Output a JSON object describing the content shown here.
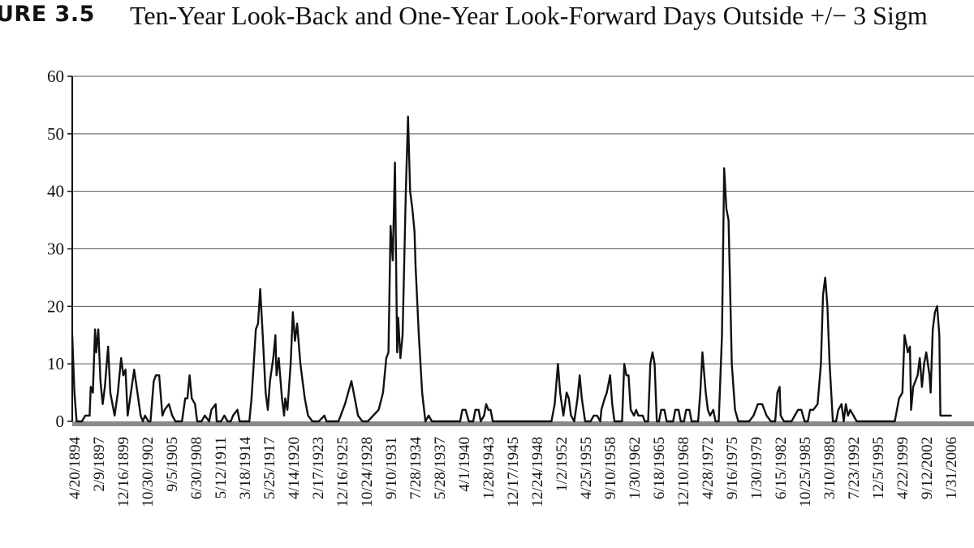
{
  "figure": {
    "label": "URE 3.5",
    "title": "Ten-Year Look-Back and One-Year Look-Forward Days Outside +/− 3 Sigm"
  },
  "chart_data": {
    "type": "line",
    "title": "Ten-Year Look-Back and One-Year Look-Forward Days Outside +/− 3 Sigm",
    "xlabel": "",
    "ylabel": "",
    "ylim": [
      0,
      60
    ],
    "yticks": [
      0,
      10,
      20,
      30,
      40,
      50,
      60
    ],
    "grid": "horizontal",
    "x_tick_labels": [
      "4/20/1894",
      "2/9/1897",
      "12/16/1899",
      "10/30/1902",
      "9/5/1905",
      "6/30/1908",
      "5/12/1911",
      "3/18/1914",
      "5/25/1917",
      "4/14/1920",
      "2/17/1923",
      "12/16/1925",
      "10/24/1928",
      "9/10/1931",
      "7/28/1934",
      "5/28/1937",
      "4/1/1940",
      "1/28/1943",
      "12/17/1945",
      "12/24/1948",
      "1/2/1952",
      "4/25/1955",
      "9/10/1958",
      "1/30/1962",
      "6/18/1965",
      "12/10/1968",
      "4/28/1972",
      "9/16/1975",
      "1/30/1979",
      "6/15/1982",
      "10/25/1985",
      "3/10/1989",
      "7/23/1992",
      "12/5/1995",
      "4/22/1999",
      "9/12/2002",
      "1/31/2006"
    ],
    "series": [
      {
        "values": [
          [
            1894.3,
            15
          ],
          [
            1894.5,
            5
          ],
          [
            1894.7,
            0
          ],
          [
            1895.2,
            0
          ],
          [
            1895.5,
            1
          ],
          [
            1895.9,
            1
          ],
          [
            1896.0,
            6
          ],
          [
            1896.2,
            5
          ],
          [
            1896.4,
            16
          ],
          [
            1896.5,
            12
          ],
          [
            1896.7,
            16
          ],
          [
            1896.9,
            7
          ],
          [
            1897.1,
            3
          ],
          [
            1897.3,
            6
          ],
          [
            1897.6,
            13
          ],
          [
            1897.8,
            5
          ],
          [
            1898.2,
            1
          ],
          [
            1898.5,
            5
          ],
          [
            1898.8,
            11
          ],
          [
            1899.0,
            8
          ],
          [
            1899.2,
            9
          ],
          [
            1899.4,
            1
          ],
          [
            1899.7,
            5
          ],
          [
            1900.0,
            9
          ],
          [
            1900.3,
            5
          ],
          [
            1900.6,
            1
          ],
          [
            1900.8,
            0
          ],
          [
            1901.0,
            1
          ],
          [
            1901.3,
            0
          ],
          [
            1901.5,
            0
          ],
          [
            1901.8,
            7
          ],
          [
            1902.0,
            8
          ],
          [
            1902.3,
            8
          ],
          [
            1902.6,
            1
          ],
          [
            1902.8,
            2
          ],
          [
            1903.2,
            3
          ],
          [
            1903.5,
            1
          ],
          [
            1903.8,
            0
          ],
          [
            1904.4,
            0
          ],
          [
            1904.7,
            4
          ],
          [
            1904.9,
            4
          ],
          [
            1905.1,
            8
          ],
          [
            1905.3,
            4
          ],
          [
            1905.6,
            3
          ],
          [
            1905.8,
            0
          ],
          [
            1906.2,
            0
          ],
          [
            1906.5,
            1
          ],
          [
            1906.9,
            0
          ],
          [
            1907.1,
            2
          ],
          [
            1907.5,
            3
          ],
          [
            1907.6,
            0
          ],
          [
            1908.0,
            0
          ],
          [
            1908.3,
            1
          ],
          [
            1908.6,
            0
          ],
          [
            1908.9,
            0
          ],
          [
            1909.1,
            1
          ],
          [
            1909.5,
            2
          ],
          [
            1909.7,
            0
          ],
          [
            1910.6,
            0
          ],
          [
            1910.8,
            4
          ],
          [
            1911.0,
            10
          ],
          [
            1911.2,
            16
          ],
          [
            1911.4,
            17
          ],
          [
            1911.6,
            23
          ],
          [
            1911.8,
            16
          ],
          [
            1912.1,
            5
          ],
          [
            1912.3,
            2
          ],
          [
            1912.5,
            7
          ],
          [
            1912.8,
            11
          ],
          [
            1913.0,
            15
          ],
          [
            1913.1,
            8
          ],
          [
            1913.3,
            11
          ],
          [
            1913.6,
            4
          ],
          [
            1913.8,
            1
          ],
          [
            1913.9,
            4
          ],
          [
            1914.1,
            2
          ],
          [
            1914.4,
            10
          ],
          [
            1914.6,
            19
          ],
          [
            1914.8,
            14
          ],
          [
            1915.0,
            17
          ],
          [
            1915.3,
            10
          ],
          [
            1915.7,
            4
          ],
          [
            1916.0,
            1
          ],
          [
            1916.4,
            0
          ],
          [
            1917.0,
            0
          ],
          [
            1917.5,
            1
          ],
          [
            1917.7,
            0
          ],
          [
            1918.8,
            0
          ],
          [
            1919.0,
            1
          ],
          [
            1919.4,
            3
          ],
          [
            1919.7,
            5
          ],
          [
            1920.0,
            7
          ],
          [
            1920.3,
            4
          ],
          [
            1920.6,
            1
          ],
          [
            1921.0,
            0
          ],
          [
            1921.5,
            0
          ],
          [
            1922.0,
            1
          ],
          [
            1922.5,
            2
          ],
          [
            1922.9,
            5
          ],
          [
            1923.2,
            11
          ],
          [
            1923.4,
            12
          ],
          [
            1923.6,
            34
          ],
          [
            1923.8,
            28
          ],
          [
            1924.0,
            45
          ],
          [
            1924.2,
            12
          ],
          [
            1924.3,
            18
          ],
          [
            1924.5,
            11
          ],
          [
            1924.7,
            15
          ],
          [
            1925.0,
            40
          ],
          [
            1925.2,
            53
          ],
          [
            1925.4,
            40
          ],
          [
            1925.6,
            37
          ],
          [
            1925.8,
            33
          ],
          [
            1925.9,
            27
          ],
          [
            1926.2,
            15
          ],
          [
            1926.5,
            5
          ],
          [
            1926.8,
            0
          ],
          [
            1927.1,
            1
          ],
          [
            1927.4,
            0
          ],
          [
            1930.0,
            0
          ],
          [
            1930.2,
            2
          ],
          [
            1930.5,
            2
          ],
          [
            1930.8,
            0
          ],
          [
            1931.2,
            0
          ],
          [
            1931.4,
            2
          ],
          [
            1931.7,
            2
          ],
          [
            1931.9,
            0
          ],
          [
            1932.2,
            1
          ],
          [
            1932.4,
            3
          ],
          [
            1932.6,
            2
          ],
          [
            1932.8,
            2
          ],
          [
            1933.0,
            0
          ],
          [
            1938.4,
            0
          ],
          [
            1938.7,
            3
          ],
          [
            1939.0,
            10
          ],
          [
            1939.2,
            5
          ],
          [
            1939.5,
            1
          ],
          [
            1939.8,
            5
          ],
          [
            1940.0,
            4
          ],
          [
            1940.2,
            1
          ],
          [
            1940.5,
            0
          ],
          [
            1940.8,
            4
          ],
          [
            1941.0,
            8
          ],
          [
            1941.2,
            4
          ],
          [
            1941.5,
            0
          ],
          [
            1942.0,
            0
          ],
          [
            1942.3,
            1
          ],
          [
            1942.6,
            1
          ],
          [
            1942.9,
            0
          ],
          [
            1943.0,
            2
          ],
          [
            1943.3,
            4
          ],
          [
            1943.5,
            5
          ],
          [
            1943.8,
            8
          ],
          [
            1944.0,
            3
          ],
          [
            1944.2,
            0
          ],
          [
            1944.9,
            0
          ],
          [
            1945.1,
            10
          ],
          [
            1945.3,
            8
          ],
          [
            1945.5,
            8
          ],
          [
            1945.7,
            2
          ],
          [
            1946.0,
            1
          ],
          [
            1946.2,
            2
          ],
          [
            1946.4,
            1
          ],
          [
            1946.6,
            1
          ],
          [
            1946.8,
            1
          ],
          [
            1947.0,
            0
          ],
          [
            1947.3,
            0
          ],
          [
            1947.5,
            10
          ],
          [
            1947.7,
            12
          ],
          [
            1947.9,
            10
          ],
          [
            1948.1,
            0
          ],
          [
            1948.3,
            0
          ],
          [
            1948.5,
            2
          ],
          [
            1948.8,
            2
          ],
          [
            1949.0,
            0
          ],
          [
            1949.6,
            0
          ],
          [
            1949.8,
            2
          ],
          [
            1950.1,
            2
          ],
          [
            1950.3,
            0
          ],
          [
            1950.6,
            0
          ],
          [
            1950.8,
            2
          ],
          [
            1951.1,
            2
          ],
          [
            1951.3,
            0
          ],
          [
            1951.9,
            0
          ],
          [
            1952.1,
            5
          ],
          [
            1952.3,
            12
          ],
          [
            1952.6,
            5
          ],
          [
            1952.8,
            2
          ],
          [
            1953.0,
            1
          ],
          [
            1953.3,
            2
          ],
          [
            1953.5,
            0
          ],
          [
            1953.8,
            0
          ],
          [
            1954.1,
            15
          ],
          [
            1954.3,
            44
          ],
          [
            1954.5,
            37
          ],
          [
            1954.7,
            35
          ],
          [
            1954.8,
            27
          ],
          [
            1955.0,
            10
          ],
          [
            1955.3,
            2
          ],
          [
            1955.6,
            0
          ],
          [
            1956.6,
            0
          ],
          [
            1957.0,
            1
          ],
          [
            1957.4,
            3
          ],
          [
            1957.8,
            3
          ],
          [
            1958.2,
            1
          ],
          [
            1958.6,
            0
          ],
          [
            1959.0,
            0
          ],
          [
            1959.2,
            5
          ],
          [
            1959.4,
            6
          ],
          [
            1959.5,
            1
          ],
          [
            1959.8,
            0
          ],
          [
            1960.5,
            0
          ],
          [
            1960.8,
            1
          ],
          [
            1961.1,
            2
          ],
          [
            1961.4,
            2
          ],
          [
            1961.7,
            0
          ],
          [
            1962.0,
            0
          ],
          [
            1962.2,
            2
          ],
          [
            1962.5,
            2
          ],
          [
            1962.9,
            3
          ],
          [
            1963.2,
            10
          ],
          [
            1963.4,
            22
          ],
          [
            1963.6,
            25
          ],
          [
            1963.8,
            20
          ],
          [
            1964.0,
            10
          ],
          [
            1964.3,
            0
          ],
          [
            1964.6,
            0
          ],
          [
            1964.8,
            2
          ],
          [
            1965.1,
            3
          ],
          [
            1965.3,
            0
          ],
          [
            1965.5,
            3
          ],
          [
            1965.7,
            1
          ],
          [
            1965.9,
            2
          ],
          [
            1966.2,
            1
          ],
          [
            1966.5,
            0
          ],
          [
            1970.0,
            0
          ],
          [
            1970.4,
            4
          ],
          [
            1970.7,
            5
          ],
          [
            1970.9,
            15
          ],
          [
            1971.2,
            12
          ],
          [
            1971.4,
            13
          ],
          [
            1971.5,
            2
          ],
          [
            1971.7,
            6
          ],
          [
            1971.9,
            7
          ],
          [
            1972.1,
            8
          ],
          [
            1972.3,
            11
          ],
          [
            1972.5,
            6
          ],
          [
            1972.7,
            10
          ],
          [
            1972.9,
            12
          ],
          [
            1973.2,
            8
          ],
          [
            1973.3,
            5
          ],
          [
            1973.5,
            16
          ],
          [
            1973.7,
            19
          ],
          [
            1973.9,
            20
          ],
          [
            1974.1,
            15
          ],
          [
            1974.2,
            1
          ],
          [
            1974.4,
            1
          ],
          [
            1974.8,
            1
          ],
          [
            1975.2,
            1
          ]
        ]
      }
    ]
  }
}
